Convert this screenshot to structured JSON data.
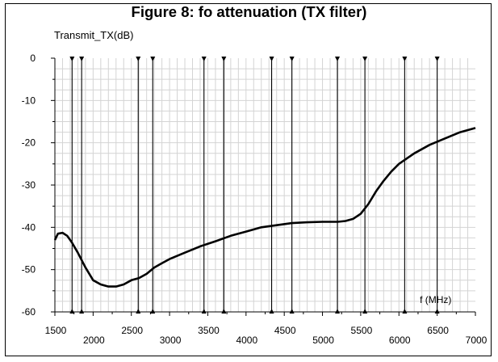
{
  "chart_data": {
    "type": "line",
    "title": "Figure 8: fo attenuation (TX filter)",
    "ylabel": "Transmit_TX(dB)",
    "xlabel": "",
    "annotation": "f (MHz)",
    "xlim": [
      1500,
      7000
    ],
    "ylim": [
      -60,
      0
    ],
    "x_ticks": [
      1500,
      2000,
      2500,
      3000,
      3500,
      4000,
      4500,
      5000,
      5500,
      6000,
      6500,
      7000
    ],
    "y_ticks": [
      0,
      -10,
      -20,
      -30,
      -40,
      -50,
      -60
    ],
    "grid": true,
    "markers_x": [
      1725,
      1850,
      2590,
      2780,
      3450,
      3710,
      4335,
      4600,
      5195,
      5555,
      6075,
      6500
    ],
    "series": [
      {
        "x": [
          1500,
          1540,
          1600,
          1660,
          1720,
          1800,
          1900,
          2000,
          2100,
          2200,
          2300,
          2400,
          2500,
          2600,
          2700,
          2800,
          2900,
          3000,
          3200,
          3400,
          3600,
          3800,
          4000,
          4200,
          4400,
          4600,
          4800,
          5000,
          5100,
          5200,
          5300,
          5400,
          5500,
          5600,
          5700,
          5800,
          5900,
          6000,
          6200,
          6400,
          6600,
          6800,
          7000
        ],
        "y": [
          -43,
          -41.5,
          -41.3,
          -42,
          -43.5,
          -46,
          -49.5,
          -52.5,
          -53.5,
          -54,
          -54,
          -53.5,
          -52.5,
          -52,
          -51,
          -49.5,
          -48.5,
          -47.5,
          -46,
          -44.5,
          -43.3,
          -42,
          -41,
          -40,
          -39.5,
          -39,
          -38.8,
          -38.7,
          -38.7,
          -38.7,
          -38.5,
          -38,
          -36.8,
          -34.5,
          -31.5,
          -29,
          -26.8,
          -25,
          -22.5,
          -20.5,
          -19,
          -17.5,
          -16.5
        ]
      }
    ]
  }
}
